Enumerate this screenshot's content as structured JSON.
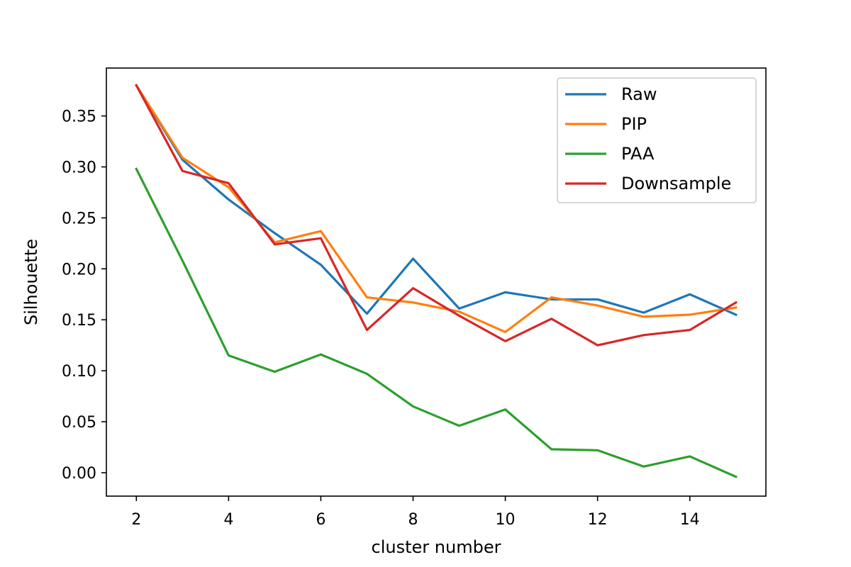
{
  "chart_data": {
    "type": "line",
    "title": "",
    "xlabel": "cluster number",
    "ylabel": "Silhouette",
    "x": [
      2,
      3,
      4,
      5,
      6,
      7,
      8,
      9,
      10,
      11,
      12,
      13,
      14,
      15
    ],
    "xlim": [
      1.35,
      15.65
    ],
    "ylim": [
      -0.023,
      0.397
    ],
    "x_ticks": [
      2,
      4,
      6,
      8,
      10,
      12,
      14
    ],
    "x_tick_labels": [
      "2",
      "4",
      "6",
      "8",
      "10",
      "12",
      "14"
    ],
    "y_ticks": [
      0.0,
      0.05,
      0.1,
      0.15,
      0.2,
      0.25,
      0.3,
      0.35
    ],
    "y_tick_labels": [
      "0.00",
      "0.05",
      "0.10",
      "0.15",
      "0.20",
      "0.25",
      "0.30",
      "0.35"
    ],
    "grid": false,
    "legend_position": "top-right",
    "series": [
      {
        "name": "Raw",
        "color": "#1f77b4",
        "values": [
          0.38,
          0.307,
          0.268,
          0.235,
          0.204,
          0.156,
          0.21,
          0.161,
          0.177,
          0.17,
          0.17,
          0.157,
          0.175,
          0.155
        ]
      },
      {
        "name": "PIP",
        "color": "#ff7f0e",
        "values": [
          0.38,
          0.309,
          0.28,
          0.226,
          0.237,
          0.172,
          0.167,
          0.158,
          0.138,
          0.172,
          0.164,
          0.153,
          0.155,
          0.162
        ]
      },
      {
        "name": "PAA",
        "color": "#2ca02c",
        "values": [
          0.298,
          0.208,
          0.115,
          0.099,
          0.116,
          0.097,
          0.065,
          0.046,
          0.062,
          0.023,
          0.022,
          0.006,
          0.016,
          -0.004
        ]
      },
      {
        "name": "Downsample",
        "color": "#d62728",
        "values": [
          0.38,
          0.296,
          0.284,
          0.224,
          0.23,
          0.14,
          0.181,
          0.154,
          0.129,
          0.151,
          0.125,
          0.135,
          0.14,
          0.167
        ]
      }
    ]
  }
}
